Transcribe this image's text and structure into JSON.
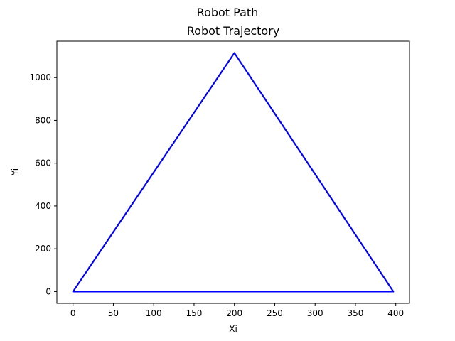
{
  "figure": {
    "suptitle": "Robot Path"
  },
  "chart_data": {
    "type": "line",
    "title": "Robot Trajectory",
    "xlabel": "Xi",
    "ylabel": "Yi",
    "xlim": [
      -20,
      417
    ],
    "ylim": [
      -55,
      1170
    ],
    "xticks": [
      0,
      50,
      100,
      150,
      200,
      250,
      300,
      350,
      400
    ],
    "yticks": [
      0,
      200,
      400,
      600,
      800,
      1000
    ],
    "grid": false,
    "series": [
      {
        "color": "#0000ff",
        "x": [
          0,
          200,
          397,
          0
        ],
        "y": [
          0,
          1115,
          0,
          0
        ]
      }
    ]
  }
}
